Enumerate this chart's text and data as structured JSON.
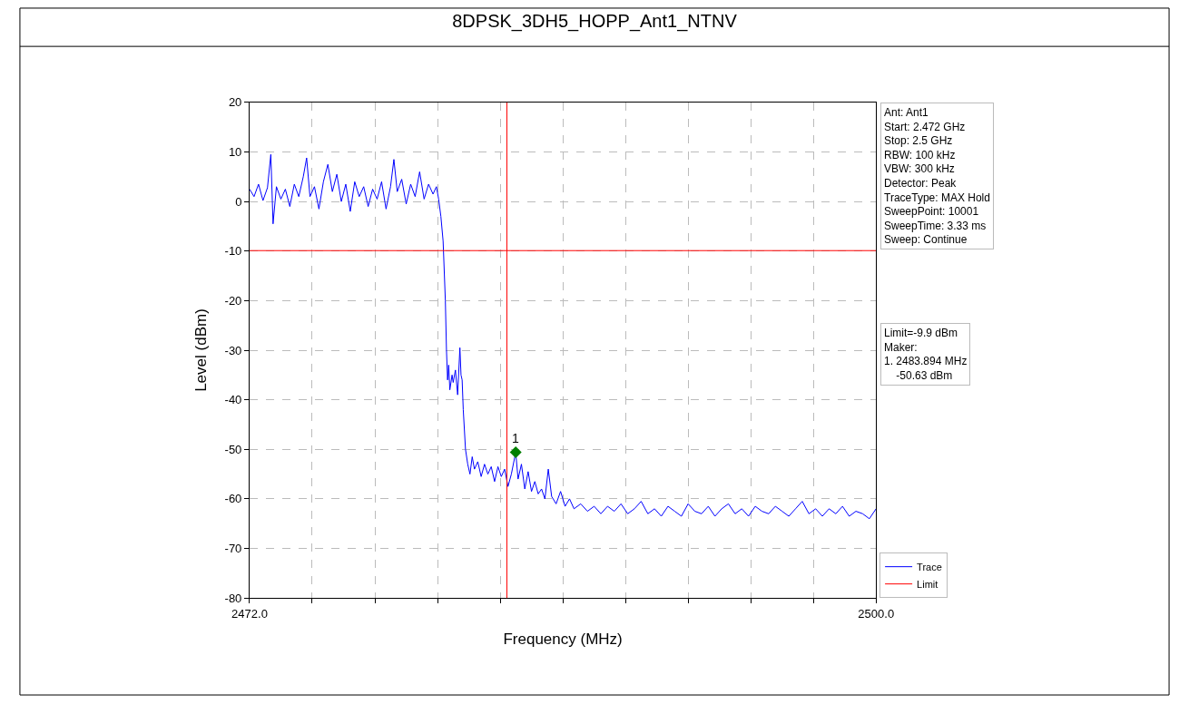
{
  "chart_data": {
    "type": "line",
    "title": "8DPSK_3DH5_HOPP_Ant1_NTNV",
    "xlabel": "Frequency (MHz)",
    "ylabel": "Level (dBm)",
    "xlim": [
      2472,
      2500
    ],
    "xticks": [
      {
        "value": 2472,
        "label": "2472.0"
      },
      {
        "value": 2474.8,
        "label": null
      },
      {
        "value": 2477.6,
        "label": null
      },
      {
        "value": 2480.4,
        "label": null
      },
      {
        "value": 2483.2,
        "label": null
      },
      {
        "value": 2486,
        "label": null
      },
      {
        "value": 2488.8,
        "label": null
      },
      {
        "value": 2491.6,
        "label": null
      },
      {
        "value": 2494.4,
        "label": null
      },
      {
        "value": 2497.2,
        "label": null
      },
      {
        "value": 2500,
        "label": "2500.0"
      }
    ],
    "ylim": [
      -80,
      20
    ],
    "yticks": [
      -80,
      -70,
      -60,
      -50,
      -40,
      -30,
      -20,
      -10,
      0,
      10,
      20
    ],
    "grid": true,
    "legend": "bottom right",
    "series": [
      {
        "name": "Trace",
        "color": "#0000ff",
        "x": [
          2472.0,
          2472.2,
          2472.4,
          2472.6,
          2472.8,
          2472.95,
          2473.05,
          2473.2,
          2473.4,
          2473.6,
          2473.8,
          2474.0,
          2474.2,
          2474.4,
          2474.55,
          2474.7,
          2474.9,
          2475.1,
          2475.3,
          2475.5,
          2475.7,
          2475.9,
          2476.1,
          2476.3,
          2476.5,
          2476.7,
          2476.9,
          2477.1,
          2477.3,
          2477.5,
          2477.7,
          2477.9,
          2478.1,
          2478.3,
          2478.45,
          2478.6,
          2478.8,
          2479.0,
          2479.2,
          2479.4,
          2479.6,
          2479.8,
          2480.0,
          2480.2,
          2480.35,
          2480.45,
          2480.55,
          2480.65,
          2480.75,
          2480.8,
          2480.85,
          2480.9,
          2480.95,
          2481.05,
          2481.1,
          2481.2,
          2481.3,
          2481.4,
          2481.45,
          2481.5,
          2481.55,
          2481.65,
          2481.75,
          2481.85,
          2481.95,
          2482.05,
          2482.2,
          2482.35,
          2482.5,
          2482.65,
          2482.8,
          2482.95,
          2483.1,
          2483.25,
          2483.4,
          2483.55,
          2483.7,
          2483.894,
          2484.0,
          2484.15,
          2484.3,
          2484.45,
          2484.6,
          2484.75,
          2484.9,
          2485.05,
          2485.2,
          2485.35,
          2485.5,
          2485.7,
          2485.9,
          2486.1,
          2486.3,
          2486.5,
          2486.8,
          2487.1,
          2487.4,
          2487.7,
          2488.0,
          2488.3,
          2488.6,
          2488.9,
          2489.2,
          2489.5,
          2489.8,
          2490.1,
          2490.4,
          2490.7,
          2491.0,
          2491.3,
          2491.6,
          2491.9,
          2492.2,
          2492.5,
          2492.8,
          2493.1,
          2493.4,
          2493.7,
          2494.0,
          2494.3,
          2494.6,
          2494.9,
          2495.2,
          2495.5,
          2495.8,
          2496.1,
          2496.4,
          2496.7,
          2497.0,
          2497.3,
          2497.6,
          2497.9,
          2498.2,
          2498.5,
          2498.8,
          2499.1,
          2499.4,
          2499.7,
          2500.0
        ],
        "values": [
          2.5,
          1.0,
          3.5,
          0.2,
          2.8,
          9.5,
          -4.5,
          3.0,
          0.5,
          2.5,
          -1.0,
          3.5,
          1.0,
          5.0,
          8.8,
          1.0,
          3.0,
          -1.5,
          4.0,
          7.5,
          2.0,
          5.5,
          0.0,
          3.5,
          -2.0,
          4.0,
          1.0,
          3.0,
          -1.0,
          2.5,
          0.5,
          4.0,
          -1.5,
          3.0,
          8.5,
          2.0,
          4.5,
          -0.5,
          3.5,
          1.0,
          6.0,
          0.5,
          3.5,
          1.5,
          3.0,
          0.5,
          -3.0,
          -8.0,
          -20.0,
          -30.0,
          -36.0,
          -33.0,
          -38.0,
          -35.0,
          -36.5,
          -34.0,
          -39.0,
          -29.5,
          -35.0,
          -36.0,
          -42.0,
          -50.0,
          -53.0,
          -55.0,
          -51.5,
          -54.0,
          -52.5,
          -55.5,
          -53.0,
          -55.0,
          -53.5,
          -56.5,
          -53.5,
          -55.5,
          -54.0,
          -57.5,
          -55.0,
          -50.6,
          -56.0,
          -53.0,
          -58.0,
          -54.5,
          -58.5,
          -56.5,
          -59.0,
          -58.0,
          -60.0,
          -54.0,
          -59.5,
          -61.0,
          -58.5,
          -61.5,
          -60.0,
          -62.0,
          -61.0,
          -62.5,
          -61.5,
          -63.0,
          -61.5,
          -62.5,
          -61.0,
          -63.0,
          -62.0,
          -60.5,
          -63.0,
          -62.0,
          -63.5,
          -61.5,
          -62.5,
          -63.5,
          -61.0,
          -62.5,
          -63.0,
          -61.5,
          -63.5,
          -62.0,
          -61.0,
          -63.0,
          -62.0,
          -63.5,
          -61.5,
          -62.5,
          -63.0,
          -61.5,
          -62.5,
          -63.5,
          -62.0,
          -60.5,
          -63.0,
          -62.0,
          -63.5,
          -62.0,
          -63.0,
          -61.5,
          -63.5,
          -62.5,
          -63.0,
          -64.0,
          -62.0
        ]
      },
      {
        "name": "Limit",
        "color": "#ff0000",
        "x": [
          2472,
          2500
        ],
        "values": [
          -9.9,
          -9.9
        ]
      },
      {
        "type": "scatter",
        "color": "#007f00",
        "marker": "diamond",
        "x": [
          2483.894
        ],
        "values": [
          -50.6
        ]
      }
    ],
    "ref_lines": [
      {
        "axis": "x",
        "value": 2483.5,
        "color": "#ff0000"
      }
    ],
    "annotations": [
      {
        "text": "1",
        "x": 2483.894,
        "y": -50.6
      },
      "Ant: Ant1\nStart: 2.472 GHz\nStop: 2.5 GHz\nRBW: 100 kHz\nVBW: 300 kHz\nDetector: Peak\nTraceType: MAX Hold\nSweepPoint: 10001\nSweepTime: 3.33 ms\nSweep: Continue",
      "Limit=-9.9 dBm\nMaker:\n1. 2483.894 MHz\n    -50.63 dBm"
    ]
  }
}
